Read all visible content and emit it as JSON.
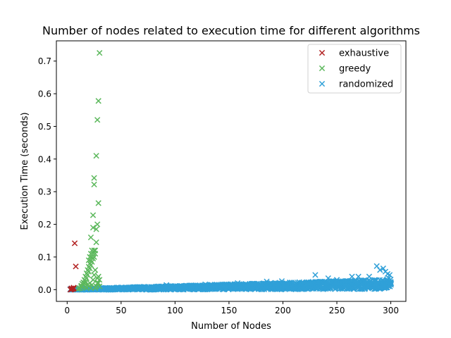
{
  "chart_data": {
    "type": "scatter",
    "title": "Number of nodes related to execution time for different algorithms",
    "xlabel": "Number of Nodes",
    "ylabel": "Execution Time (seconds)",
    "xlim": [
      -10,
      314
    ],
    "ylim": [
      -0.036,
      0.762
    ],
    "xticks": [
      0,
      50,
      100,
      150,
      200,
      250,
      300
    ],
    "xtick_labels": [
      "0",
      "50",
      "100",
      "150",
      "200",
      "250",
      "300"
    ],
    "yticks": [
      0.0,
      0.1,
      0.2,
      0.3,
      0.4,
      0.5,
      0.6,
      0.7
    ],
    "ytick_labels": [
      "0.0",
      "0.1",
      "0.2",
      "0.3",
      "0.4",
      "0.5",
      "0.6",
      "0.7"
    ],
    "grid": false,
    "legend_position": "top-right",
    "marker": "x",
    "series": [
      {
        "name": "exhaustive",
        "color": "#b22222",
        "points": [
          [
            3,
            0.0
          ],
          [
            4,
            0.001
          ],
          [
            5,
            0.002
          ],
          [
            6,
            0.003
          ],
          [
            7,
            0.142
          ],
          [
            8,
            0.071
          ],
          [
            4,
            0.004
          ],
          [
            6,
            0.006
          ]
        ]
      },
      {
        "name": "greedy",
        "color": "#5cb85c",
        "points": [
          [
            10,
            0.002
          ],
          [
            11,
            0.005
          ],
          [
            12,
            0.004
          ],
          [
            13,
            0.008
          ],
          [
            13,
            0.012
          ],
          [
            14,
            0.01
          ],
          [
            14,
            0.018
          ],
          [
            15,
            0.015
          ],
          [
            15,
            0.022
          ],
          [
            16,
            0.02
          ],
          [
            16,
            0.03
          ],
          [
            17,
            0.025
          ],
          [
            17,
            0.04
          ],
          [
            18,
            0.035
          ],
          [
            18,
            0.05
          ],
          [
            19,
            0.045
          ],
          [
            19,
            0.06
          ],
          [
            20,
            0.055
          ],
          [
            20,
            0.07
          ],
          [
            20,
            0.09
          ],
          [
            21,
            0.065
          ],
          [
            21,
            0.08
          ],
          [
            21,
            0.1
          ],
          [
            22,
            0.075
          ],
          [
            22,
            0.09
          ],
          [
            22,
            0.11
          ],
          [
            22,
            0.16
          ],
          [
            23,
            0.085
          ],
          [
            23,
            0.1
          ],
          [
            23,
            0.12
          ],
          [
            24,
            0.095
          ],
          [
            24,
            0.11
          ],
          [
            24,
            0.19
          ],
          [
            24,
            0.228
          ],
          [
            25,
            0.1
          ],
          [
            25,
            0.12
          ],
          [
            25,
            0.322
          ],
          [
            25,
            0.342
          ],
          [
            26,
            0.11
          ],
          [
            26,
            0.12
          ],
          [
            27,
            0.145
          ],
          [
            27,
            0.185
          ],
          [
            27,
            0.41
          ],
          [
            28,
            0.2
          ],
          [
            28,
            0.52
          ],
          [
            29,
            0.578
          ],
          [
            29,
            0.265
          ],
          [
            30,
            0.725
          ],
          [
            29,
            0.04
          ],
          [
            30,
            0.03
          ],
          [
            28,
            0.02
          ],
          [
            27,
            0.01
          ],
          [
            26,
            0.005
          ],
          [
            30,
            0.01
          ],
          [
            29,
            0.02
          ],
          [
            28,
            0.035
          ],
          [
            26,
            0.06
          ],
          [
            25,
            0.045
          ],
          [
            24,
            0.03
          ],
          [
            23,
            0.015
          ],
          [
            22,
            0.005
          ],
          [
            21,
            0.02
          ],
          [
            20,
            0.01
          ],
          [
            19,
            0.015
          ],
          [
            18,
            0.005
          ],
          [
            17,
            0.01
          ]
        ]
      },
      {
        "name": "randomized",
        "color": "#30a0d8",
        "generated": {
          "x_range": [
            3,
            300
          ],
          "per_x": 5,
          "y_base": [
            0.0005,
            0.015
          ],
          "y_spread": [
            0.003,
            0.03
          ]
        },
        "points": [
          [
            92,
            0.014
          ],
          [
            128,
            0.016
          ],
          [
            158,
            0.02
          ],
          [
            185,
            0.025
          ],
          [
            199,
            0.026
          ],
          [
            230,
            0.045
          ],
          [
            242,
            0.035
          ],
          [
            250,
            0.03
          ],
          [
            264,
            0.04
          ],
          [
            270,
            0.04
          ],
          [
            280,
            0.04
          ],
          [
            287,
            0.072
          ],
          [
            290,
            0.06
          ],
          [
            293,
            0.065
          ],
          [
            295,
            0.055
          ],
          [
            297,
            0.048
          ],
          [
            299,
            0.045
          ],
          [
            298,
            0.035
          ],
          [
            296,
            0.03
          ],
          [
            294,
            0.025
          ]
        ]
      }
    ]
  }
}
